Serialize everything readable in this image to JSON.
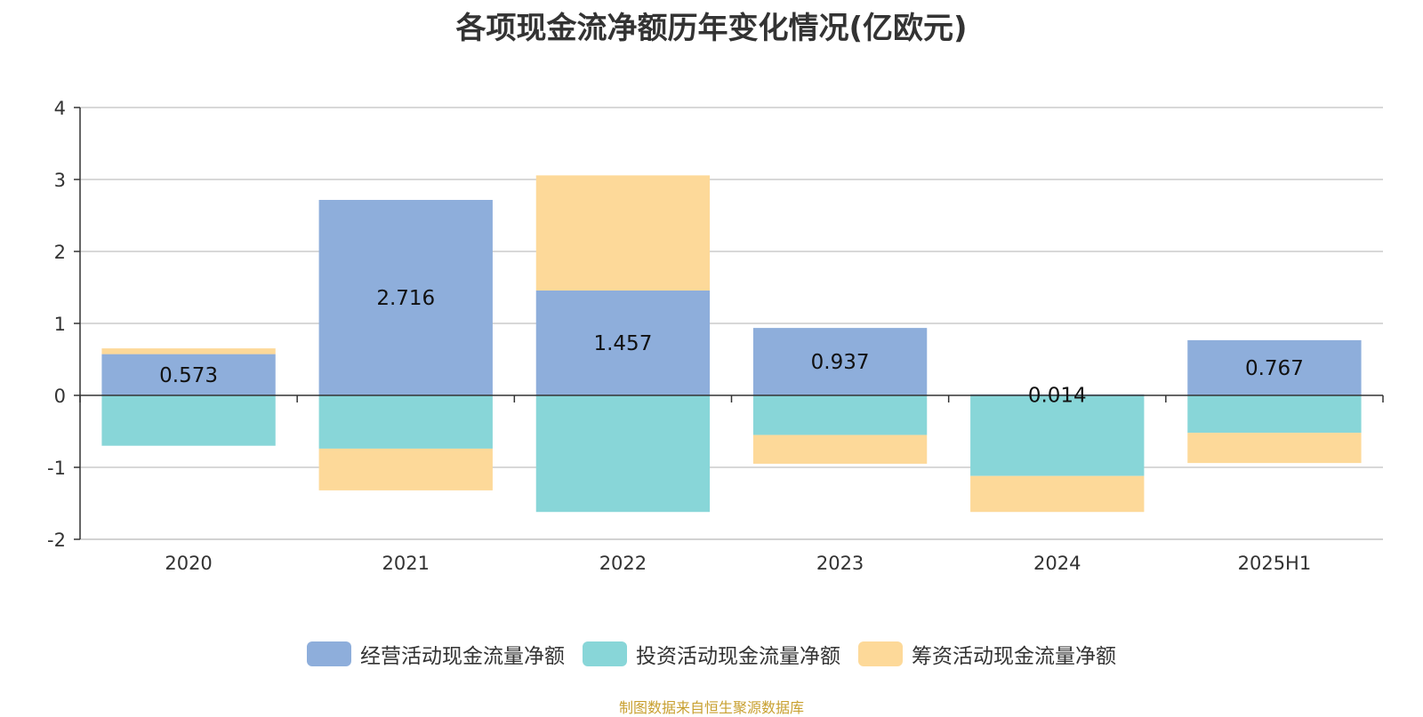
{
  "chart_data": {
    "type": "bar",
    "stacked": true,
    "title": "各项现金流净额历年变化情况(亿欧元)",
    "categories": [
      "2020",
      "2021",
      "2022",
      "2023",
      "2024",
      "2025H1"
    ],
    "ylim": [
      -2,
      4
    ],
    "yticks": [
      -2,
      -1,
      0,
      1,
      2,
      3,
      4
    ],
    "grid": true,
    "legend_position": "bottom",
    "series": [
      {
        "name": "经营活动现金流量净额",
        "color": "#8eaedb",
        "values": [
          0.573,
          2.716,
          1.457,
          0.937,
          0.014,
          0.767
        ]
      },
      {
        "name": "投资活动现金流量净额",
        "color": "#88d6d8",
        "values": [
          -0.7,
          -0.74,
          -1.62,
          -0.55,
          -1.12,
          -0.52
        ]
      },
      {
        "name": "筹资活动现金流量净额",
        "color": "#fdd999",
        "values": [
          0.08,
          -0.58,
          1.6,
          -0.4,
          -0.5,
          -0.42
        ]
      }
    ],
    "data_labels": [
      "0.573",
      "2.716",
      "1.457",
      "0.937",
      "0.014",
      "0.767"
    ]
  },
  "source_note": "制图数据来自恒生聚源数据库"
}
